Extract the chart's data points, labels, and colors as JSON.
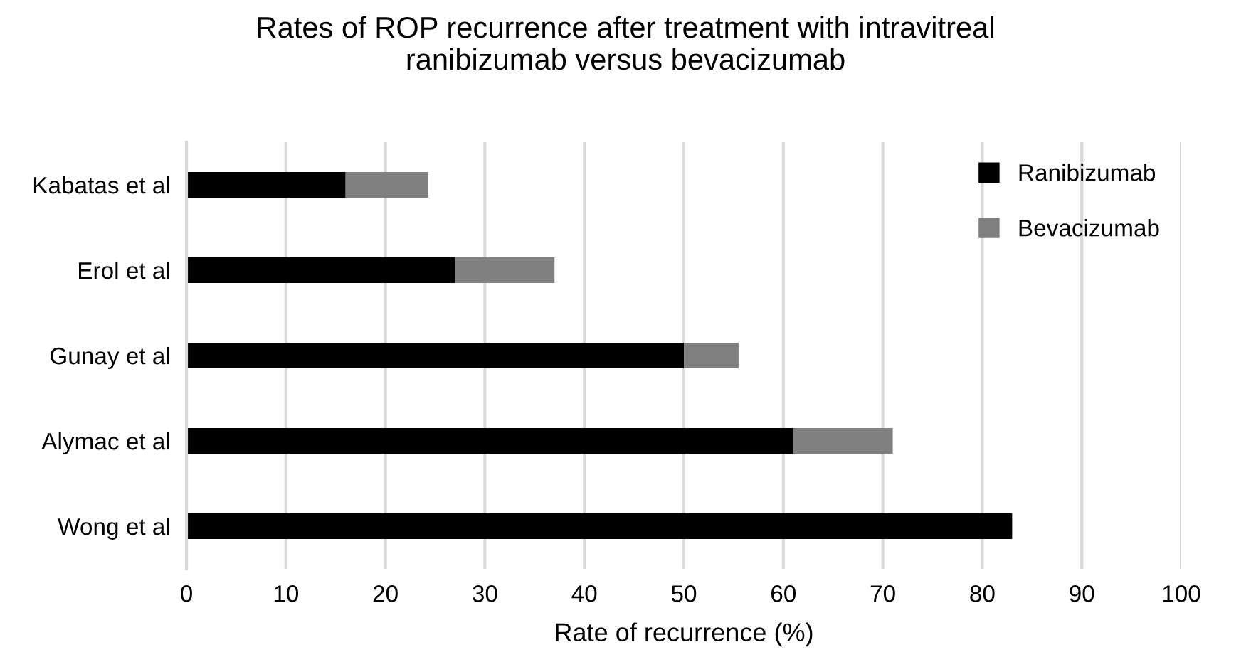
{
  "chart_data": {
    "type": "bar",
    "orientation": "horizontal",
    "stacked": true,
    "title": "Rates of ROP recurrence after treatment with intravitreal\nranibizumab versus bevacizumab",
    "xlabel": "Rate of recurrence (%)",
    "categories": [
      "Kabatas et al",
      "Erol et al",
      "Gunay et al",
      "Alymac et al",
      "Wong et al"
    ],
    "series": [
      {
        "name": "Ranibizumab",
        "color": "#000000",
        "values": [
          16,
          27,
          50,
          61,
          83
        ]
      },
      {
        "name": "Bevacizumab",
        "color": "#808080",
        "values": [
          8.3,
          10,
          5.5,
          10,
          0
        ]
      }
    ],
    "xlim": [
      0,
      100
    ],
    "xticks": [
      0,
      10,
      20,
      30,
      40,
      50,
      60,
      70,
      80,
      90,
      100
    ],
    "grid": "x",
    "legend": "top right"
  }
}
